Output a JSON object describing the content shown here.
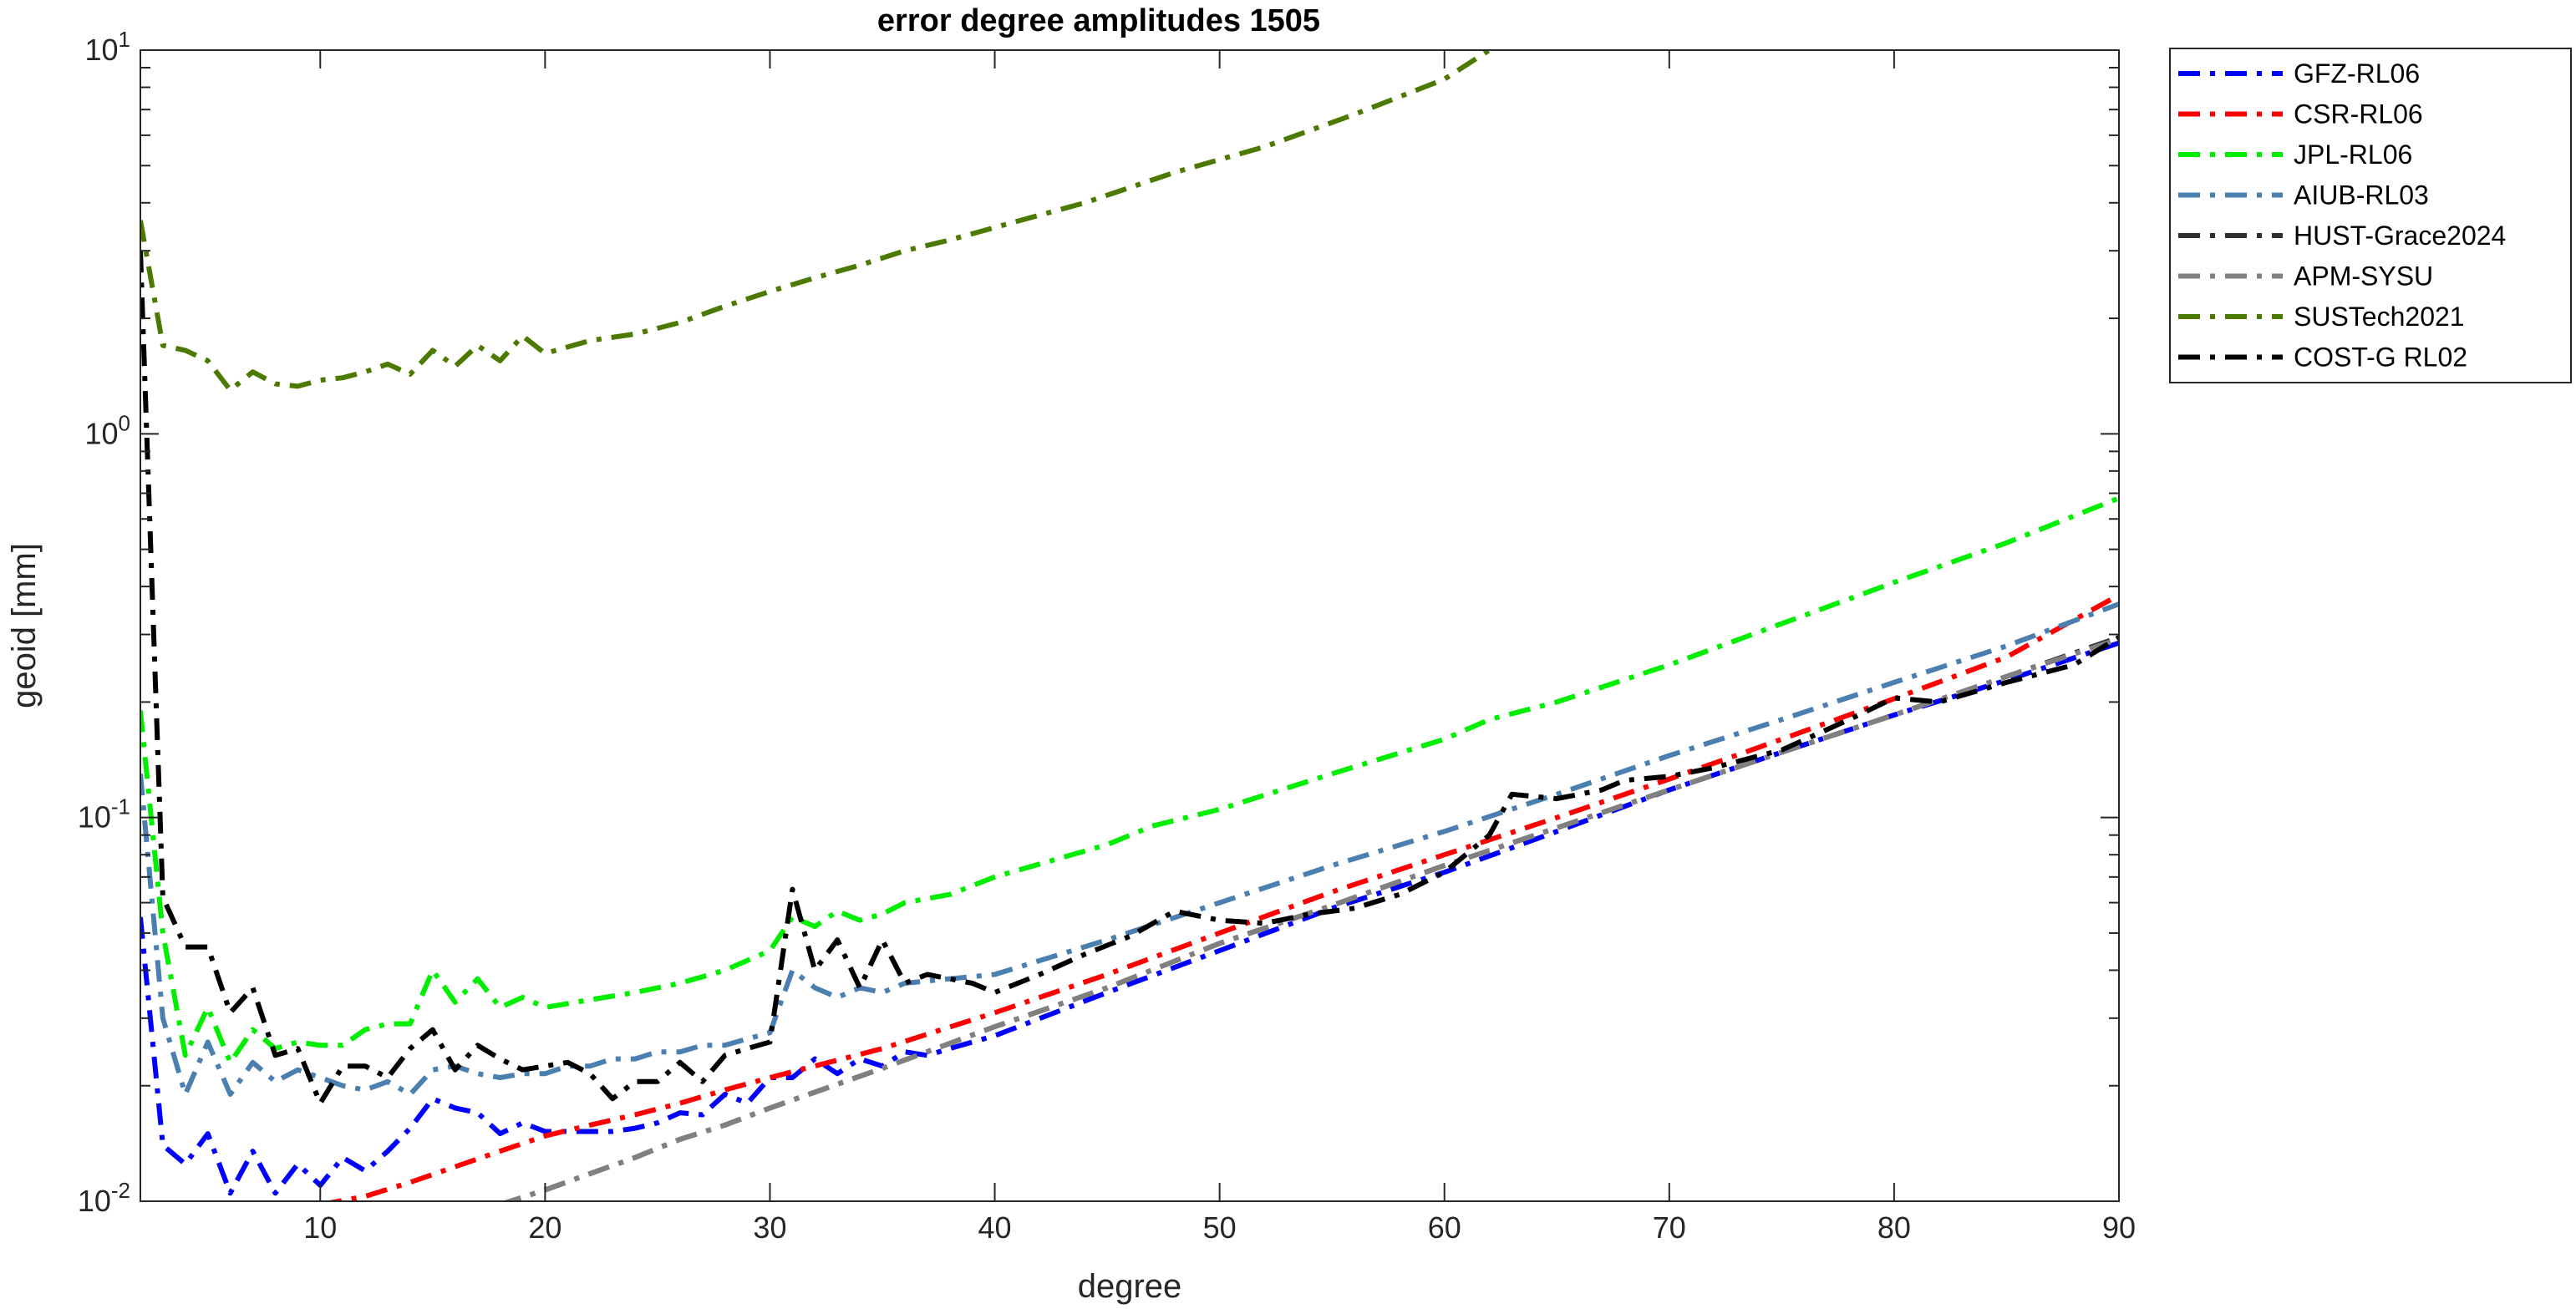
{
  "chart_data": {
    "type": "line",
    "title": "error degree amplitudes 1505",
    "xlabel": "degree",
    "ylabel": "geoid [mm]",
    "xlim": [
      2,
      90
    ],
    "ylim": [
      0.01,
      10
    ],
    "yscale": "log",
    "grid": false,
    "legend_position": "outside-top-right",
    "xticks": [
      {
        "v": 10,
        "label": "10"
      },
      {
        "v": 20,
        "label": "20"
      },
      {
        "v": 30,
        "label": "30"
      },
      {
        "v": 40,
        "label": "40"
      },
      {
        "v": 50,
        "label": "50"
      },
      {
        "v": 60,
        "label": "60"
      },
      {
        "v": 70,
        "label": "70"
      },
      {
        "v": 80,
        "label": "80"
      },
      {
        "v": 90,
        "label": "90"
      }
    ],
    "yticks": [
      {
        "v": 0.01,
        "base": "10",
        "exp": "-2"
      },
      {
        "v": 0.1,
        "base": "10",
        "exp": "-1"
      },
      {
        "v": 1,
        "base": "10",
        "exp": "0"
      },
      {
        "v": 10,
        "base": "10",
        "exp": "1"
      }
    ],
    "series": [
      {
        "name": "GFZ-RL06",
        "color": "#0000ff",
        "style": "dashdot",
        "x": [
          2,
          3,
          4,
          5,
          6,
          7,
          8,
          9,
          10,
          11,
          12,
          13,
          14,
          15,
          16,
          17,
          18,
          19,
          20,
          21,
          22,
          23,
          24,
          25,
          26,
          27,
          28,
          29,
          30,
          31,
          32,
          33,
          34,
          35,
          36,
          37,
          38,
          40,
          45,
          50,
          55,
          60,
          65,
          70,
          75,
          80,
          85,
          90
        ],
        "y": [
          0.055,
          0.014,
          0.0125,
          0.015,
          0.0105,
          0.0135,
          0.0105,
          0.0125,
          0.011,
          0.013,
          0.012,
          0.0135,
          0.0155,
          0.0185,
          0.0175,
          0.017,
          0.015,
          0.016,
          0.0152,
          0.0152,
          0.0152,
          0.0152,
          0.0155,
          0.016,
          0.017,
          0.0168,
          0.019,
          0.018,
          0.021,
          0.021,
          0.0235,
          0.0215,
          0.0235,
          0.0225,
          0.0245,
          0.024,
          0.025,
          0.027,
          0.035,
          0.045,
          0.058,
          0.072,
          0.092,
          0.118,
          0.148,
          0.185,
          0.228,
          0.285
        ]
      },
      {
        "name": "CSR-RL06",
        "color": "#ff0000",
        "style": "dashdot",
        "x": [
          10,
          12,
          14,
          16,
          18,
          20,
          22,
          24,
          26,
          28,
          30,
          35,
          40,
          45,
          50,
          55,
          60,
          65,
          70,
          75,
          80,
          85,
          90
        ],
        "y": [
          0.0098,
          0.0103,
          0.0112,
          0.0123,
          0.0135,
          0.0148,
          0.0158,
          0.0168,
          0.018,
          0.0195,
          0.021,
          0.025,
          0.031,
          0.039,
          0.05,
          0.064,
          0.08,
          0.1,
          0.126,
          0.16,
          0.204,
          0.262,
          0.38
        ]
      },
      {
        "name": "JPL-RL06",
        "color": "#00ee00",
        "style": "dashdot",
        "x": [
          2,
          3,
          4,
          5,
          6,
          7,
          8,
          9,
          10,
          11,
          12,
          13,
          14,
          15,
          16,
          17,
          18,
          19,
          20,
          22,
          24,
          26,
          28,
          30,
          31,
          32,
          33,
          34,
          35,
          36,
          38,
          40,
          45,
          47,
          50,
          55,
          60,
          62,
          65,
          70,
          75,
          80,
          85,
          90
        ],
        "y": [
          0.19,
          0.05,
          0.024,
          0.032,
          0.023,
          0.028,
          0.025,
          0.026,
          0.0255,
          0.0255,
          0.028,
          0.029,
          0.029,
          0.04,
          0.033,
          0.038,
          0.032,
          0.034,
          0.032,
          0.0335,
          0.035,
          0.037,
          0.04,
          0.045,
          0.055,
          0.052,
          0.057,
          0.054,
          0.056,
          0.06,
          0.063,
          0.07,
          0.085,
          0.095,
          0.105,
          0.13,
          0.16,
          0.18,
          0.2,
          0.25,
          0.32,
          0.41,
          0.52,
          0.68
        ]
      },
      {
        "name": "AIUB-RL03",
        "color": "#4a7fb0",
        "style": "dashdot",
        "x": [
          2,
          3,
          4,
          5,
          6,
          7,
          8,
          9,
          10,
          11,
          12,
          13,
          14,
          15,
          16,
          17,
          18,
          19,
          20,
          21,
          22,
          23,
          24,
          25,
          26,
          27,
          28,
          29,
          30,
          31,
          32,
          33,
          34,
          35,
          36,
          38,
          40,
          45,
          50,
          55,
          60,
          65,
          70,
          75,
          80,
          85,
          90
        ],
        "y": [
          0.13,
          0.03,
          0.019,
          0.026,
          0.019,
          0.023,
          0.0205,
          0.022,
          0.021,
          0.02,
          0.0195,
          0.0205,
          0.019,
          0.022,
          0.0225,
          0.0215,
          0.021,
          0.0215,
          0.0215,
          0.0225,
          0.0225,
          0.0235,
          0.0235,
          0.0245,
          0.0245,
          0.0255,
          0.0255,
          0.0265,
          0.0275,
          0.04,
          0.036,
          0.034,
          0.036,
          0.035,
          0.037,
          0.038,
          0.039,
          0.048,
          0.06,
          0.075,
          0.092,
          0.115,
          0.145,
          0.18,
          0.225,
          0.28,
          0.36
        ]
      },
      {
        "name": "HUST-Grace2024",
        "color": "#303030",
        "style": "dashdot",
        "x": [
          18,
          20,
          22,
          24,
          26,
          28,
          30,
          35,
          40,
          45,
          50,
          55,
          60,
          65,
          70,
          75,
          80,
          85,
          90
        ],
        "y": [
          0.0098,
          0.0107,
          0.0118,
          0.013,
          0.0145,
          0.0158,
          0.0175,
          0.0222,
          0.0285,
          0.036,
          0.047,
          0.059,
          0.075,
          0.094,
          0.118,
          0.148,
          0.185,
          0.233,
          0.295
        ]
      },
      {
        "name": "APM-SYSU",
        "color": "#808080",
        "style": "dashdot",
        "x": [
          18,
          20,
          22,
          24,
          26,
          28,
          30,
          35,
          40,
          45,
          50,
          55,
          60,
          65,
          70,
          75,
          80,
          85,
          90
        ],
        "y": [
          0.0098,
          0.0107,
          0.0118,
          0.013,
          0.0145,
          0.0158,
          0.0175,
          0.0222,
          0.0285,
          0.036,
          0.047,
          0.059,
          0.075,
          0.094,
          0.118,
          0.148,
          0.185,
          0.233,
          0.292
        ]
      },
      {
        "name": "SUSTech2021",
        "color": "#4c7a00",
        "style": "dashdot",
        "x": [
          2,
          3,
          4,
          5,
          6,
          7,
          8,
          9,
          10,
          11,
          12,
          13,
          14,
          15,
          16,
          17,
          18,
          19,
          20,
          22,
          24,
          26,
          28,
          30,
          32,
          34,
          36,
          38,
          40,
          44,
          48,
          52,
          56,
          60,
          62
        ],
        "y": [
          3.6,
          1.7,
          1.65,
          1.55,
          1.3,
          1.45,
          1.35,
          1.33,
          1.38,
          1.4,
          1.45,
          1.52,
          1.43,
          1.65,
          1.5,
          1.7,
          1.55,
          1.8,
          1.62,
          1.75,
          1.82,
          1.95,
          2.15,
          2.35,
          2.55,
          2.75,
          3.0,
          3.2,
          3.45,
          4.0,
          4.8,
          5.6,
          6.8,
          8.4,
          10.0
        ]
      },
      {
        "name": "COST-G RL02",
        "color": "#000000",
        "style": "dashdot",
        "x": [
          2,
          3,
          4,
          5,
          6,
          7,
          8,
          9,
          10,
          11,
          12,
          13,
          14,
          15,
          16,
          17,
          18,
          19,
          20,
          21,
          22,
          23,
          24,
          25,
          26,
          27,
          28,
          29,
          30,
          31,
          32,
          33,
          34,
          35,
          36,
          37,
          38,
          39,
          40,
          42,
          44,
          46,
          48,
          50,
          52,
          54,
          56,
          58,
          60,
          62,
          63,
          65,
          67,
          68,
          70,
          72,
          75,
          78,
          80,
          82,
          85,
          88,
          90
        ],
        "y": [
          3.0,
          0.062,
          0.046,
          0.046,
          0.031,
          0.036,
          0.024,
          0.025,
          0.018,
          0.0225,
          0.0225,
          0.021,
          0.025,
          0.028,
          0.022,
          0.0255,
          0.0235,
          0.022,
          0.0225,
          0.023,
          0.0215,
          0.0185,
          0.0205,
          0.0205,
          0.023,
          0.0205,
          0.024,
          0.025,
          0.026,
          0.065,
          0.04,
          0.048,
          0.036,
          0.048,
          0.037,
          0.039,
          0.038,
          0.037,
          0.035,
          0.039,
          0.044,
          0.049,
          0.057,
          0.054,
          0.053,
          0.056,
          0.058,
          0.063,
          0.072,
          0.09,
          0.115,
          0.112,
          0.118,
          0.125,
          0.128,
          0.135,
          0.15,
          0.18,
          0.205,
          0.2,
          0.225,
          0.25,
          0.295
        ]
      }
    ]
  }
}
